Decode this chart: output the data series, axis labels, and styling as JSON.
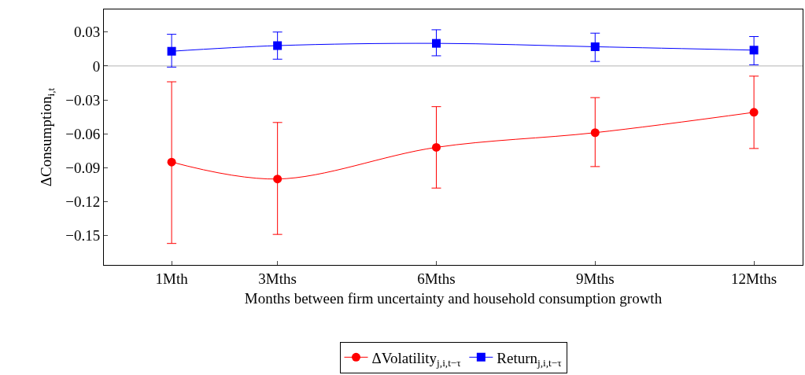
{
  "chart_data": {
    "type": "line",
    "xlabel": "Months between firm uncertainty and household consumption growth",
    "ylabel": "ΔConsumption$_{i,t}$",
    "x": [
      1,
      3,
      6,
      9,
      12
    ],
    "xlim": [
      -0.28,
      12.92
    ],
    "xticks": [
      {
        "value": 1,
        "label": "1Mth"
      },
      {
        "value": 3,
        "label": "3Mths"
      },
      {
        "value": 6,
        "label": "6Mths"
      },
      {
        "value": 9,
        "label": "9Mths"
      },
      {
        "value": 12,
        "label": "12Mths"
      }
    ],
    "ylim": [
      -0.176,
      0.05
    ],
    "yticks": [
      {
        "value": 0.03,
        "label": "0.03"
      },
      {
        "value": 0,
        "label": "0"
      },
      {
        "value": -0.03,
        "label": "−0.03"
      },
      {
        "value": -0.06,
        "label": "−0.06"
      },
      {
        "value": -0.09,
        "label": "−0.09"
      },
      {
        "value": -0.12,
        "label": "−0.12"
      },
      {
        "value": -0.15,
        "label": "−0.15"
      }
    ],
    "series": [
      {
        "name": "ΔVolatility$_{j,i,t−τ}$",
        "color": "#ff0000",
        "marker": "circle",
        "values": [
          -0.085,
          -0.1,
          -0.072,
          -0.059,
          -0.041
        ],
        "errors": [
          [
            -0.157,
            -0.014
          ],
          [
            -0.149,
            -0.05
          ],
          [
            -0.108,
            -0.036
          ],
          [
            -0.089,
            -0.028
          ],
          [
            -0.073,
            -0.009
          ]
        ]
      },
      {
        "name": "Return$_{j,i,t−τ}$",
        "color": "#0000ff",
        "marker": "square",
        "values": [
          0.013,
          0.018,
          0.02,
          0.017,
          0.014
        ],
        "errors": [
          [
            -0.001,
            0.028
          ],
          [
            0.006,
            0.03
          ],
          [
            0.009,
            0.032
          ],
          [
            0.004,
            0.029
          ],
          [
            0.001,
            0.026
          ]
        ]
      }
    ],
    "ref_lines": [
      {
        "axis": "y",
        "value": 0,
        "color": "#b3b3b3"
      }
    ],
    "grid": false,
    "legend": "bottom"
  }
}
